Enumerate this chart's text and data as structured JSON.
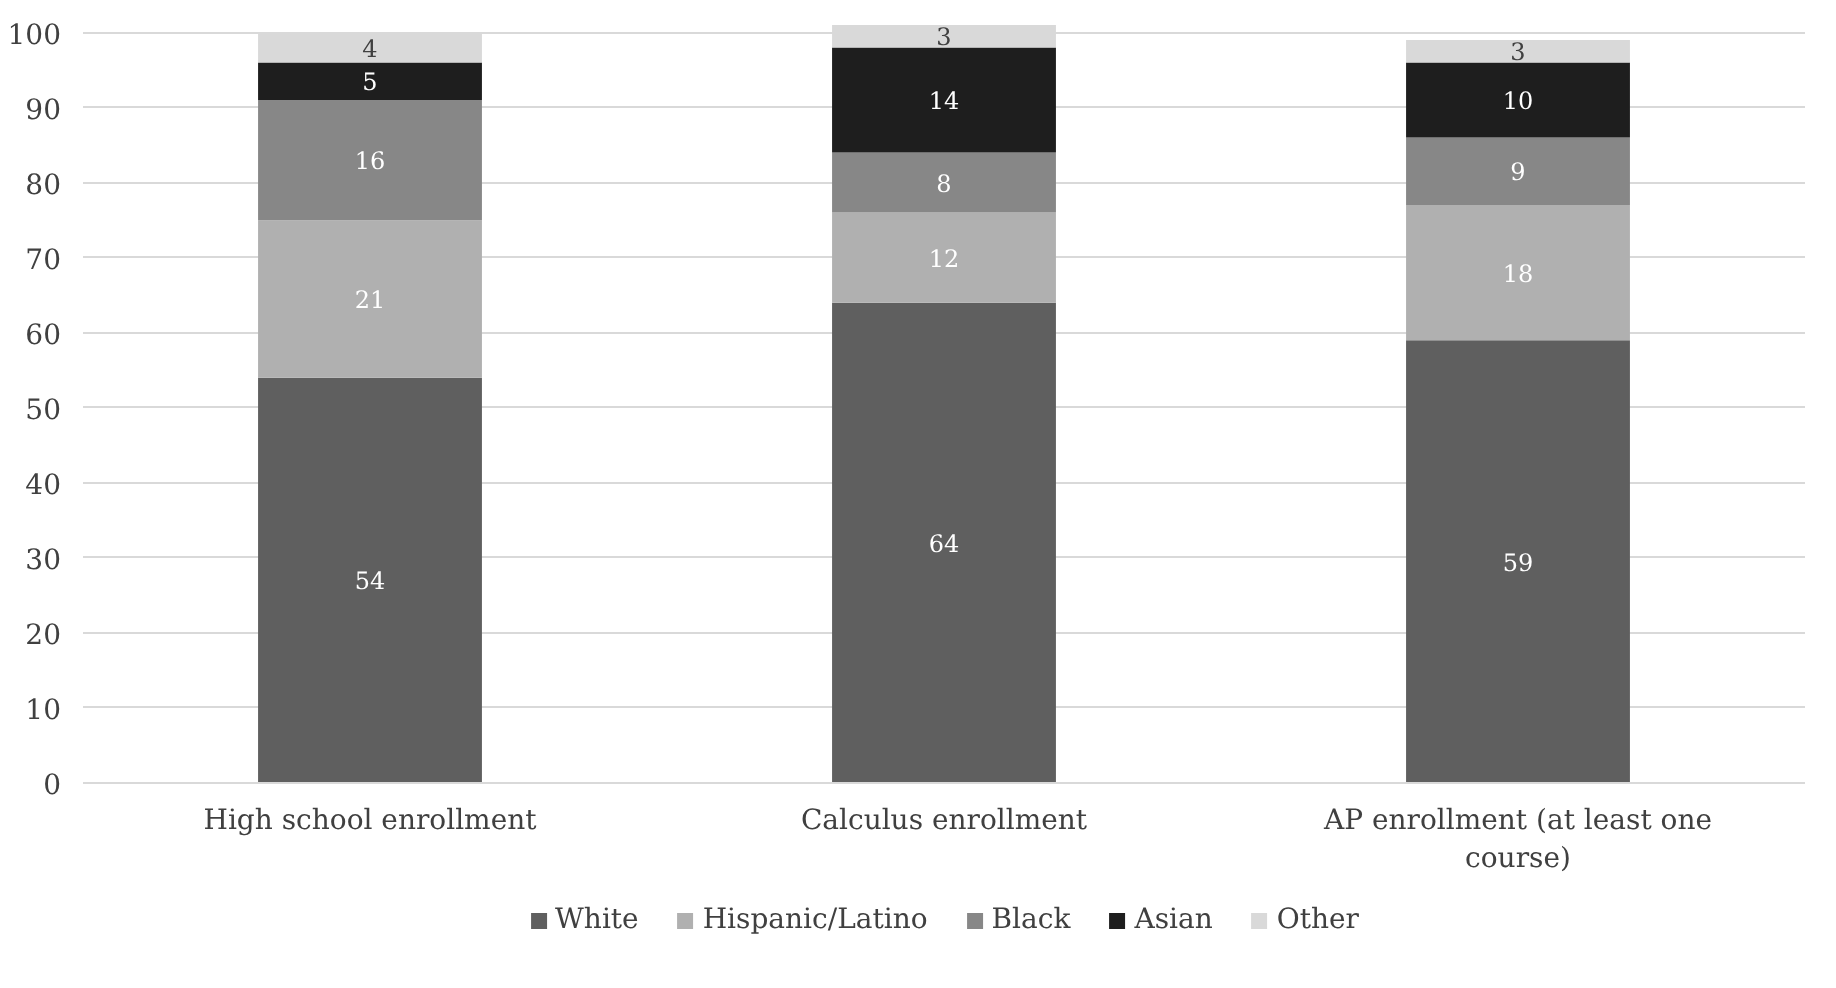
{
  "chart_data": {
    "type": "bar",
    "stacked": true,
    "data_labels": true,
    "categories": [
      "High school enrollment",
      "Calculus enrollment",
      "AP enrollment (at least one course)"
    ],
    "series": [
      {
        "name": "White",
        "color": "#5f5f5f",
        "values": [
          54,
          64,
          59
        ]
      },
      {
        "name": "Hispanic/Latino",
        "color": "#b0b0b0",
        "values": [
          21,
          12,
          18
        ]
      },
      {
        "name": "Black",
        "color": "#878787",
        "values": [
          16,
          8,
          9
        ]
      },
      {
        "name": "Asian",
        "color": "#1e1e1e",
        "values": [
          5,
          14,
          10
        ]
      },
      {
        "name": "Other",
        "color": "#d9d9d9",
        "values": [
          4,
          3,
          3
        ]
      }
    ],
    "ylim": [
      0,
      101
    ],
    "yticks": [
      0,
      10,
      20,
      30,
      40,
      50,
      60,
      70,
      80,
      90,
      100
    ],
    "grid": "y",
    "legend": "bottom"
  }
}
